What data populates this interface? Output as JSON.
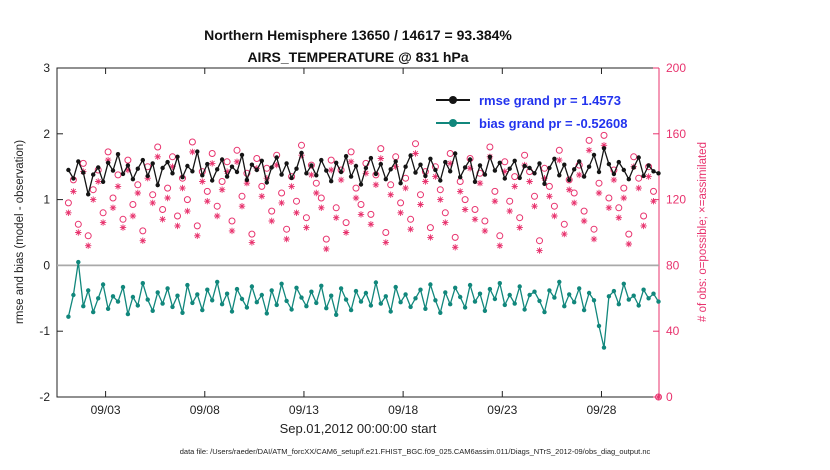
{
  "title_line1": "Northern Hemisphere 13650 / 14617 = 93.384%",
  "title_line2": "AIRS_TEMPERATURE @ 831 hPa",
  "legend": {
    "rmse_label": "rmse grand pr = 1.4573",
    "bias_label": "bias grand pr = -0.52608"
  },
  "footer": "data file: /Users/raeder/DAI/ATM_forcXX/CAM6_setup/f.e21.FHIST_BGC.f09_025.CAM6assim.011/Diags_NTrS_2012-09/obs_diag_output.nc",
  "colors": {
    "rmse": "#141414",
    "bias": "#11877c",
    "obs": "#e8336e",
    "legend_text": "#2233ee",
    "zero_line": "#a9a9a9",
    "axis": "#222222"
  },
  "chart_data": {
    "type": "line",
    "title": "Northern Hemisphere 13650 / 14617 = 93.384% | AIRS_TEMPERATURE @ 831 hPa",
    "xlabel": "Sep.01,2012 00:00:00 start",
    "ylabel_left": "rmse and bias (model - observation)",
    "ylabel_right": "# of obs: o=possible; ×=assimilated",
    "xlim": [
      -0.45,
      29.9
    ],
    "left_ylim": [
      -2,
      3
    ],
    "right_ylim": [
      0,
      200
    ],
    "left_yticks": [
      -2,
      -1,
      0,
      1,
      2,
      3
    ],
    "right_yticks": [
      0,
      40,
      80,
      120,
      160,
      200
    ],
    "x_ticks": [
      {
        "day": 2,
        "label": "09/03"
      },
      {
        "day": 7,
        "label": "09/08"
      },
      {
        "day": 12,
        "label": "09/13"
      },
      {
        "day": 17,
        "label": "09/18"
      },
      {
        "day": 22,
        "label": "09/23"
      },
      {
        "day": 27,
        "label": "09/28"
      }
    ],
    "n_points": 120,
    "x_start": 0.125,
    "x_step": 0.25,
    "grand_stats": {
      "rmse": 1.4573,
      "bias": -0.52608,
      "possible": 14617,
      "assimilated": 13650,
      "pct_assimilated": 93.384
    },
    "series": [
      {
        "name": "rmse",
        "axis": "left",
        "marker": "dot",
        "values": [
          1.45,
          1.32,
          1.58,
          1.41,
          1.08,
          1.38,
          1.49,
          1.27,
          1.56,
          1.44,
          1.69,
          1.39,
          1.52,
          1.31,
          1.47,
          1.6,
          1.36,
          1.55,
          1.22,
          1.48,
          1.57,
          1.4,
          1.65,
          1.34,
          1.51,
          1.43,
          1.73,
          1.37,
          1.54,
          1.29,
          1.46,
          1.61,
          1.35,
          1.5,
          1.42,
          1.68,
          1.3,
          1.53,
          1.45,
          1.59,
          1.26,
          1.49,
          1.64,
          1.38,
          1.55,
          1.33,
          1.47,
          1.71,
          1.4,
          1.52,
          1.37,
          1.6,
          1.44,
          1.28,
          1.56,
          1.42,
          1.66,
          1.35,
          1.51,
          1.23,
          1.48,
          1.63,
          1.39,
          1.54,
          1.31,
          1.46,
          1.58,
          1.25,
          1.5,
          1.67,
          1.41,
          1.53,
          1.36,
          1.62,
          1.45,
          1.29,
          1.57,
          1.43,
          1.7,
          1.34,
          1.49,
          1.61,
          1.27,
          1.52,
          1.38,
          1.65,
          1.44,
          1.56,
          1.32,
          1.47,
          1.59,
          1.33,
          1.51,
          1.48,
          1.4,
          1.55,
          1.24,
          1.48,
          1.62,
          1.37,
          1.53,
          1.3,
          1.46,
          1.58,
          1.35,
          1.5,
          1.68,
          1.42,
          1.78,
          1.54,
          1.39,
          1.57,
          1.45,
          1.31,
          1.49,
          1.64,
          1.36,
          1.52,
          1.43,
          1.4
        ]
      },
      {
        "name": "bias",
        "axis": "left",
        "marker": "dot",
        "values": [
          -0.78,
          -0.45,
          0.05,
          -0.62,
          -0.38,
          -0.71,
          -0.5,
          -0.29,
          -0.66,
          -0.47,
          -0.55,
          -0.33,
          -0.74,
          -0.48,
          -0.61,
          -0.27,
          -0.52,
          -0.69,
          -0.41,
          -0.58,
          -0.35,
          -0.63,
          -0.46,
          -0.72,
          -0.3,
          -0.57,
          -0.44,
          -0.68,
          -0.37,
          -0.53,
          -0.25,
          -0.59,
          -0.43,
          -0.7,
          -0.36,
          -0.51,
          -0.64,
          -0.32,
          -0.56,
          -0.45,
          -0.73,
          -0.38,
          -0.6,
          -0.28,
          -0.54,
          -0.67,
          -0.34,
          -0.49,
          -0.62,
          -0.4,
          -0.57,
          -0.31,
          -0.65,
          -0.46,
          -0.75,
          -0.35,
          -0.52,
          -0.68,
          -0.39,
          -0.55,
          -0.42,
          -0.61,
          -0.26,
          -0.58,
          -0.47,
          -0.7,
          -0.33,
          -0.56,
          -0.44,
          -0.63,
          -0.5,
          -0.37,
          -0.66,
          -0.29,
          -0.53,
          -0.72,
          -0.41,
          -0.59,
          -0.34,
          -0.48,
          -0.64,
          -0.3,
          -0.55,
          -0.43,
          -0.69,
          -0.36,
          -0.51,
          -0.27,
          -0.6,
          -0.45,
          -0.58,
          -0.32,
          -0.67,
          -0.45,
          -0.4,
          -0.54,
          -0.71,
          -0.38,
          -0.49,
          -0.25,
          -0.62,
          -0.44,
          -0.56,
          -0.35,
          -0.68,
          -0.42,
          -0.53,
          -0.92,
          -1.25,
          -0.47,
          -0.39,
          -0.59,
          -0.28,
          -0.52,
          -0.46,
          -0.61,
          -0.37,
          -0.5,
          -0.43,
          -0.55
        ]
      },
      {
        "name": "possible",
        "axis": "right",
        "marker": "circle",
        "values": [
          118,
          132,
          105,
          142,
          98,
          126,
          138,
          112,
          149,
          121,
          135,
          108,
          144,
          117,
          129,
          101,
          140,
          123,
          152,
          114,
          127,
          146,
          110,
          133,
          120,
          155,
          104,
          137,
          125,
          148,
          116,
          131,
          143,
          107,
          150,
          122,
          136,
          99,
          145,
          128,
          139,
          113,
          147,
          124,
          102,
          134,
          119,
          153,
          109,
          141,
          130,
          121,
          96,
          144,
          115,
          138,
          106,
          149,
          127,
          117,
          142,
          111,
          135,
          151,
          100,
          129,
          146,
          118,
          133,
          108,
          154,
          123,
          137,
          103,
          140,
          126,
          112,
          148,
          97,
          131,
          120,
          145,
          114,
          136,
          107,
          152,
          125,
          98,
          143,
          119,
          134,
          109,
          147,
          137,
          122,
          95,
          139,
          128,
          116,
          150,
          105,
          132,
          124,
          141,
          113,
          156,
          102,
          130,
          159,
          121,
          138,
          115,
          127,
          99,
          146,
          133,
          110,
          140,
          125,
          0
        ]
      },
      {
        "name": "assimilated",
        "axis": "right",
        "marker": "asterisk",
        "values": [
          112,
          125,
          100,
          137,
          92,
          120,
          131,
          106,
          144,
          115,
          128,
          103,
          138,
          110,
          124,
          95,
          133,
          118,
          146,
          108,
          121,
          140,
          104,
          127,
          113,
          149,
          98,
          131,
          119,
          142,
          110,
          126,
          137,
          101,
          143,
          116,
          130,
          94,
          139,
          122,
          133,
          107,
          141,
          118,
          96,
          128,
          112,
          147,
          103,
          135,
          124,
          115,
          90,
          138,
          109,
          132,
          100,
          143,
          121,
          111,
          136,
          105,
          129,
          145,
          94,
          123,
          140,
          112,
          127,
          102,
          148,
          117,
          131,
          97,
          134,
          120,
          106,
          142,
          91,
          125,
          114,
          139,
          108,
          130,
          101,
          146,
          119,
          92,
          137,
          113,
          128,
          103,
          141,
          131,
          116,
          89,
          133,
          122,
          110,
          144,
          99,
          126,
          118,
          135,
          107,
          150,
          96,
          124,
          153,
          115,
          132,
          109,
          121,
          93,
          140,
          127,
          104,
          134,
          119,
          0
        ]
      }
    ]
  }
}
